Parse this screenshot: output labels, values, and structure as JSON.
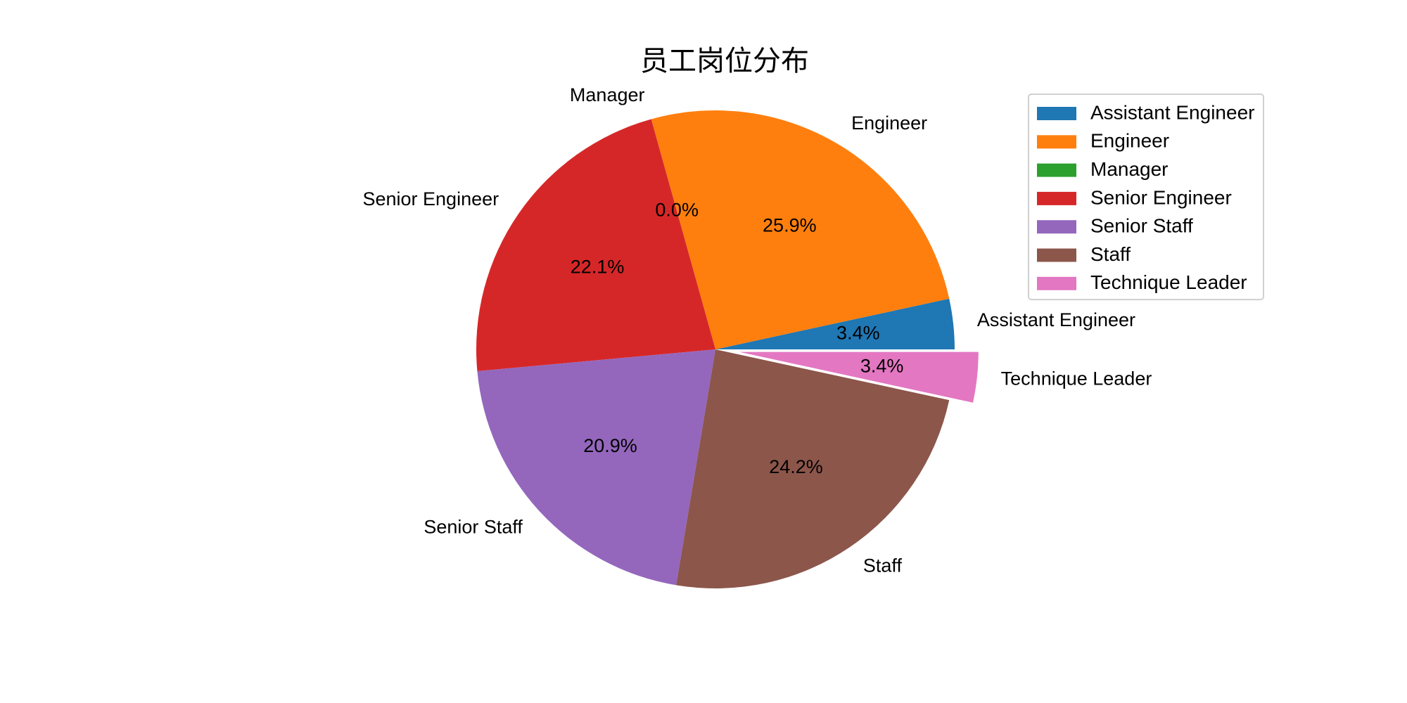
{
  "chart_data": {
    "type": "pie",
    "title": "员工岗位分布",
    "categories": [
      "Assistant Engineer",
      "Engineer",
      "Manager",
      "Senior Engineer",
      "Senior Staff",
      "Staff",
      "Technique Leader"
    ],
    "values": [
      3.4,
      25.9,
      0.0,
      22.1,
      20.9,
      24.2,
      3.4
    ],
    "percent_labels": [
      "3.4%",
      "25.9%",
      "0.0%",
      "22.1%",
      "20.9%",
      "24.2%",
      "3.4%"
    ],
    "colors": [
      "#1f77b4",
      "#ff7f0e",
      "#2ca02c",
      "#d62728",
      "#9467bd",
      "#8c564b",
      "#e377c2"
    ],
    "exploded": [
      false,
      false,
      false,
      false,
      false,
      false,
      true
    ],
    "start_angle_deg": 0,
    "direction": "counterclockwise",
    "legend": {
      "placement": "top-right",
      "entries": [
        "Assistant Engineer",
        "Engineer",
        "Manager",
        "Senior Engineer",
        "Senior Staff",
        "Staff",
        "Technique Leader"
      ]
    }
  }
}
